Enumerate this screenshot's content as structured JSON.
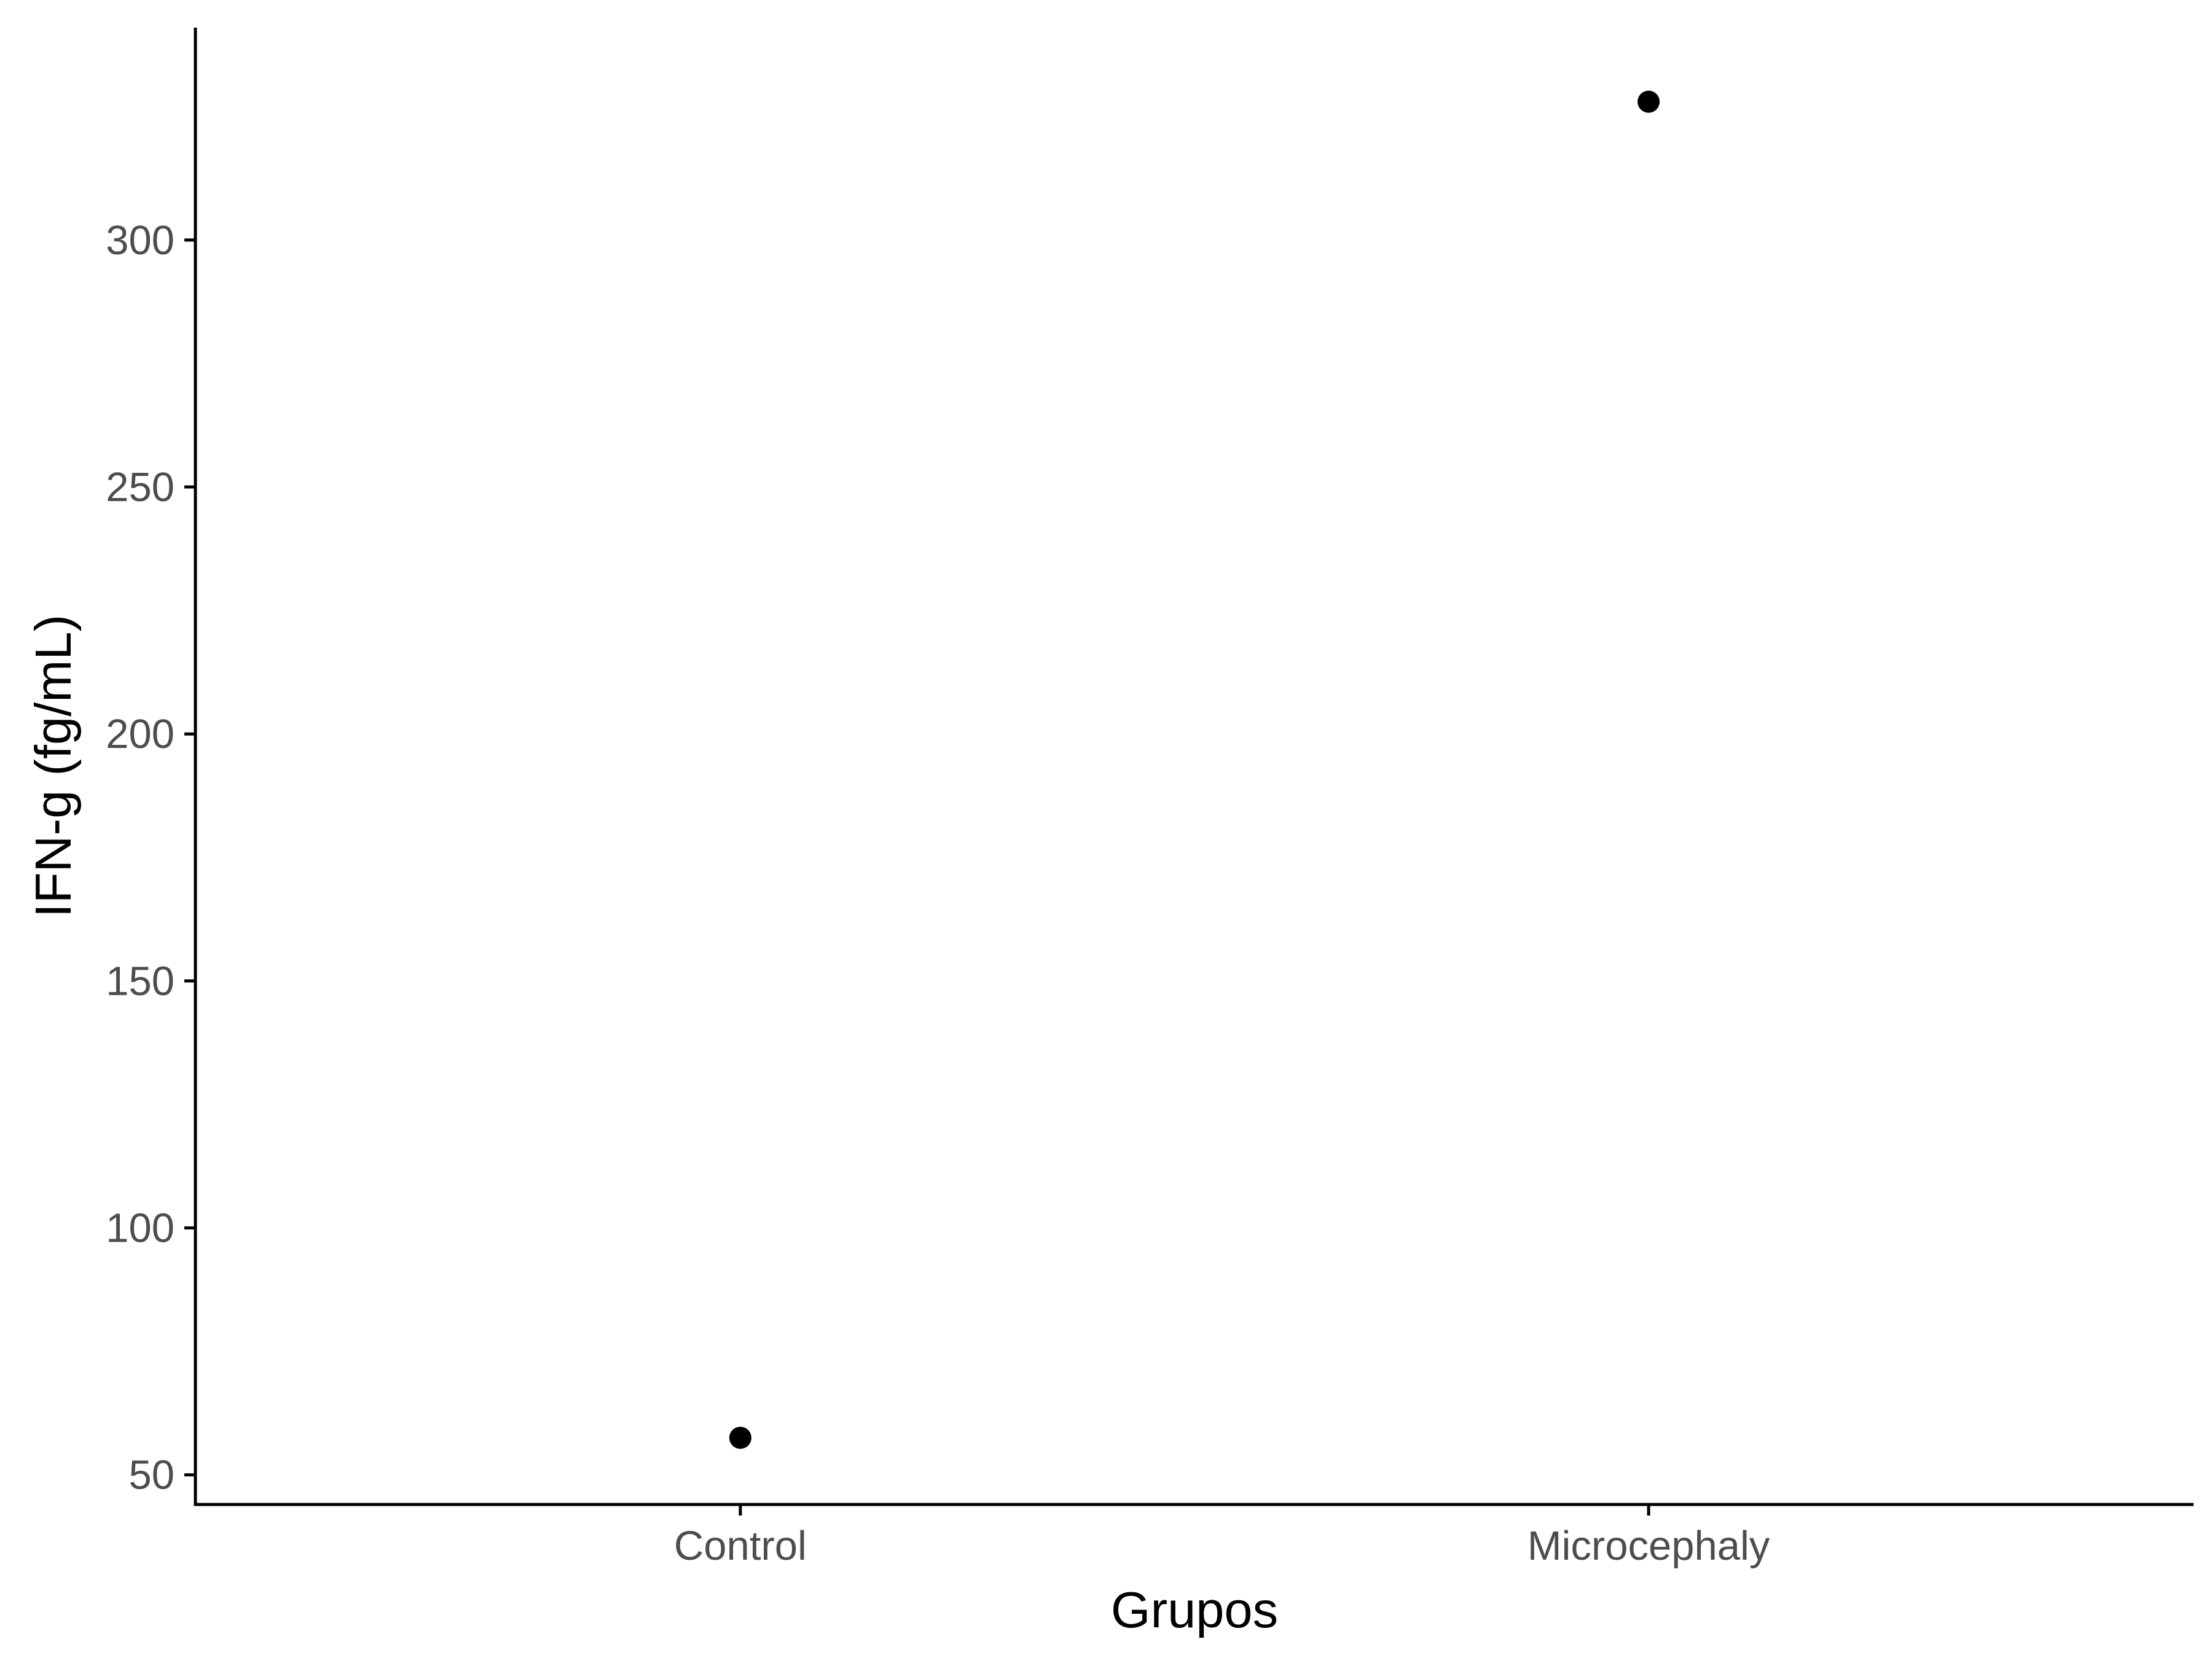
{
  "chart_data": {
    "type": "scatter",
    "title": "",
    "xlabel": "Grupos",
    "ylabel": "IFN-g (fg/mL)",
    "categories": [
      "Control",
      "Microcephaly"
    ],
    "values": [
      57.5,
      328
    ],
    "ylim": [
      44,
      343
    ],
    "yticks": [
      50,
      100,
      150,
      200,
      250,
      300
    ],
    "grid": false,
    "legend": "none",
    "colors": {
      "point": "#000000",
      "axis": "#000000",
      "tick_label": "#4d4d4d"
    }
  }
}
